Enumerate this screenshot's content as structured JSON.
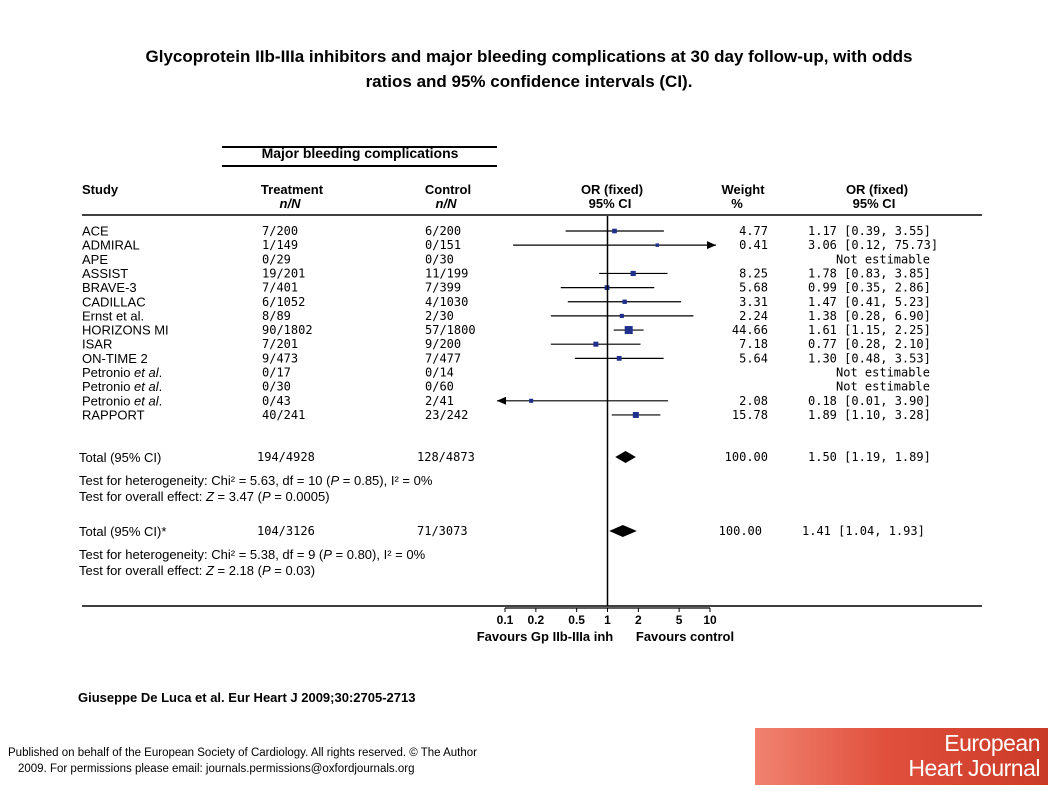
{
  "title_line1": "Glycoprotein IIb-IIIa inhibitors and major bleeding complications at 30 day follow-up, with odds",
  "title_line2": "ratios and 95% confidence intervals (CI).",
  "citation": "Giuseppe De Luca et al. Eur Heart J 2009;30:2705-2713",
  "footer_line1": "Published on behalf of the European Society of Cardiology. All rights reserved. © The Author",
  "footer_line2": "2009. For permissions please email: journals.permissions@oxfordjournals.org",
  "logo_line1": "European",
  "logo_line2": "Heart Journal",
  "logo_color": "#d9483a",
  "accent_color": "#1f2f8c",
  "chart_data": {
    "type": "forest",
    "panel_title": "Major bleeding complications",
    "headers": {
      "study": "Study",
      "treatment": "Treatment",
      "treatment_sub": "n/N",
      "control": "Control",
      "control_sub": "n/N",
      "or": "OR (fixed)",
      "or_sub": "95% CI",
      "weight": "Weight",
      "weight_sub": "%",
      "or_right": "OR (fixed)",
      "or_right_sub": "95% CI"
    },
    "xscale": "log",
    "xlim": [
      0.1,
      10
    ],
    "ticks": [
      {
        "value": 0.1,
        "label": "0.1"
      },
      {
        "value": 0.2,
        "label": "0.2"
      },
      {
        "value": 0.5,
        "label": "0.5"
      },
      {
        "value": 1,
        "label": "1"
      },
      {
        "value": 2,
        "label": "2"
      },
      {
        "value": 5,
        "label": "5"
      },
      {
        "value": 10,
        "label": "10"
      }
    ],
    "xlabel_left": "Favours Gp IIb-IIIa inh",
    "xlabel_right": "Favours control",
    "studies": [
      {
        "name": "ACE",
        "name_pre": "ACE",
        "name_em": "",
        "name_post": "",
        "treatment": "7/200",
        "control": "6/200",
        "weight": "4.77",
        "ci_text": "1.17 [0.39, 3.55]",
        "or": 1.17,
        "lo": 0.39,
        "hi": 3.55
      },
      {
        "name": "ADMIRAL",
        "name_pre": "ADMIRAL",
        "name_em": "",
        "name_post": "",
        "treatment": "1/149",
        "control": "0/151",
        "weight": "0.41",
        "ci_text": "3.06 [0.12, 75.73]",
        "or": 3.06,
        "lo": 0.12,
        "hi": 75.73
      },
      {
        "name": "APE",
        "name_pre": "APE",
        "name_em": "",
        "name_post": "",
        "treatment": "0/29",
        "control": "0/30",
        "weight": "",
        "ci_text": "Not estimable",
        "or": null,
        "lo": null,
        "hi": null
      },
      {
        "name": "ASSIST",
        "name_pre": "ASSIST",
        "name_em": "",
        "name_post": "",
        "treatment": "19/201",
        "control": "11/199",
        "weight": "8.25",
        "ci_text": "1.78 [0.83, 3.85]",
        "or": 1.78,
        "lo": 0.83,
        "hi": 3.85
      },
      {
        "name": "BRAVE-3",
        "name_pre": "BRAVE-3",
        "name_em": "",
        "name_post": "",
        "treatment": "7/401",
        "control": "7/399",
        "weight": "5.68",
        "ci_text": "0.99 [0.35, 2.86]",
        "or": 0.99,
        "lo": 0.35,
        "hi": 2.86
      },
      {
        "name": "CADILLAC",
        "name_pre": "CADILLAC",
        "name_em": "",
        "name_post": "",
        "treatment": "6/1052",
        "control": "4/1030",
        "weight": "3.31",
        "ci_text": "1.47 [0.41, 5.23]",
        "or": 1.47,
        "lo": 0.41,
        "hi": 5.23
      },
      {
        "name": "Ernst et al.",
        "name_pre": "Ernst et al.",
        "name_em": "",
        "name_post": "",
        "treatment": "8/89",
        "control": "2/30",
        "weight": "2.24",
        "ci_text": "1.38 [0.28, 6.90]",
        "or": 1.38,
        "lo": 0.28,
        "hi": 6.9
      },
      {
        "name": "HORIZONS MI",
        "name_pre": "HORIZONS MI",
        "name_em": "",
        "name_post": "",
        "treatment": "90/1802",
        "control": "57/1800",
        "weight": "44.66",
        "ci_text": "1.61 [1.15, 2.25]",
        "or": 1.61,
        "lo": 1.15,
        "hi": 2.25
      },
      {
        "name": "ISAR",
        "name_pre": "ISAR",
        "name_em": "",
        "name_post": "",
        "treatment": "7/201",
        "control": "9/200",
        "weight": "7.18",
        "ci_text": "0.77 [0.28, 2.10]",
        "or": 0.77,
        "lo": 0.28,
        "hi": 2.1
      },
      {
        "name": "ON-TIME 2",
        "name_pre": "ON-TIME 2",
        "name_em": "",
        "name_post": "",
        "treatment": "9/473",
        "control": "7/477",
        "weight": "5.64",
        "ci_text": "1.30 [0.48, 3.53]",
        "or": 1.3,
        "lo": 0.48,
        "hi": 3.53
      },
      {
        "name": "Petronio et al.",
        "name_pre": "Petronio ",
        "name_em": "et al",
        "name_post": ".",
        "treatment": "0/17",
        "control": "0/14",
        "weight": "",
        "ci_text": "Not estimable",
        "or": null,
        "lo": null,
        "hi": null
      },
      {
        "name": "Petronio et al.",
        "name_pre": "Petronio ",
        "name_em": "et al",
        "name_post": ".",
        "treatment": "0/30",
        "control": "0/60",
        "weight": "",
        "ci_text": "Not estimable",
        "or": null,
        "lo": null,
        "hi": null
      },
      {
        "name": "Petronio et al.",
        "name_pre": "Petronio ",
        "name_em": "et al",
        "name_post": ".",
        "treatment": "0/43",
        "control": "2/41",
        "weight": "2.08",
        "ci_text": "0.18 [0.01, 3.90]",
        "or": 0.18,
        "lo": 0.01,
        "hi": 3.9
      },
      {
        "name": "RAPPORT",
        "name_pre": "RAPPORT",
        "name_em": "",
        "name_post": "",
        "treatment": "40/241",
        "control": "23/242",
        "weight": "15.78",
        "ci_text": "1.89 [1.10, 3.28]",
        "or": 1.89,
        "lo": 1.1,
        "hi": 3.28
      }
    ],
    "totals": [
      {
        "label": "Total (95% CI)",
        "treatment": "194/4928",
        "control": "128/4873",
        "weight": "100.00",
        "ci_text": "1.50 [1.19, 1.89]",
        "or": 1.5,
        "lo": 1.19,
        "hi": 1.89,
        "het_pre": "Test for heterogeneity: Chi² = 5.63, df = 10 (",
        "het_em": "P",
        "het_post": " = 0.85), I² = 0%",
        "eff_pre": "Test for overall effect: ",
        "eff_em1": "Z",
        "eff_mid": " = 3.47 (",
        "eff_em2": "P",
        "eff_post": " = 0.0005)"
      },
      {
        "label": "Total (95% CI)*",
        "treatment": "104/3126",
        "control": "71/3073",
        "weight": "100.00",
        "ci_text": "1.41 [1.04, 1.93]",
        "or": 1.41,
        "lo": 1.04,
        "hi": 1.93,
        "het_pre": "Test for heterogeneity: Chi² = 5.38, df = 9 (",
        "het_em": "P",
        "het_post": " = 0.80), I² = 0%",
        "eff_pre": "Test for overall effect: ",
        "eff_em1": "Z",
        "eff_mid": " = 2.18 (",
        "eff_em2": "P",
        "eff_post": " = 0.03)"
      }
    ]
  }
}
